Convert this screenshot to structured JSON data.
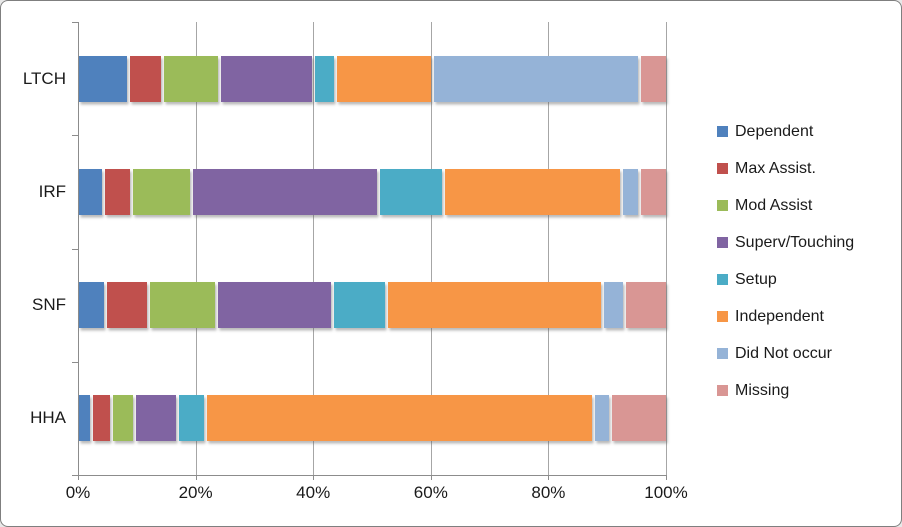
{
  "chart_data": {
    "type": "bar",
    "variant": "horizontal-stacked-100",
    "title": "",
    "categories": [
      "LTCH",
      "IRF",
      "SNF",
      "HHA"
    ],
    "series": [
      {
        "name": "Dependent",
        "color": "#4F81BD",
        "values": [
          8.5,
          4,
          4.5,
          2
        ]
      },
      {
        "name": "Max Assist.",
        "color": "#C0504D",
        "values": [
          5.5,
          4.5,
          7,
          3
        ]
      },
      {
        "name": "Mod Assist",
        "color": "#9BBB59",
        "values": [
          9.5,
          10,
          11.5,
          3.5
        ]
      },
      {
        "name": "Superv/Touching",
        "color": "#8064A2",
        "values": [
          16,
          32.5,
          20,
          7
        ]
      },
      {
        "name": "Setup",
        "color": "#4BACC6",
        "values": [
          3.5,
          11,
          9,
          4.5
        ]
      },
      {
        "name": "Independent",
        "color": "#F79646",
        "values": [
          16.5,
          31,
          37.5,
          68
        ]
      },
      {
        "name": "Did Not occur",
        "color": "#95B3D7",
        "values": [
          36,
          2.5,
          3.5,
          2.5
        ]
      },
      {
        "name": "Missing",
        "color": "#D99694",
        "values": [
          4.5,
          4.5,
          7,
          9.5
        ]
      }
    ],
    "x_ticks": [
      "0%",
      "20%",
      "40%",
      "60%",
      "80%",
      "100%"
    ],
    "xlim": [
      0,
      100
    ],
    "grid": "vertical",
    "legend_position": "right",
    "colors": {
      "axis_line": "#8c8c8c",
      "gridline": "#a6a6a6",
      "text": "#1a1a1a",
      "background": "#ffffff",
      "frame_border": "#7f7f7f"
    }
  }
}
